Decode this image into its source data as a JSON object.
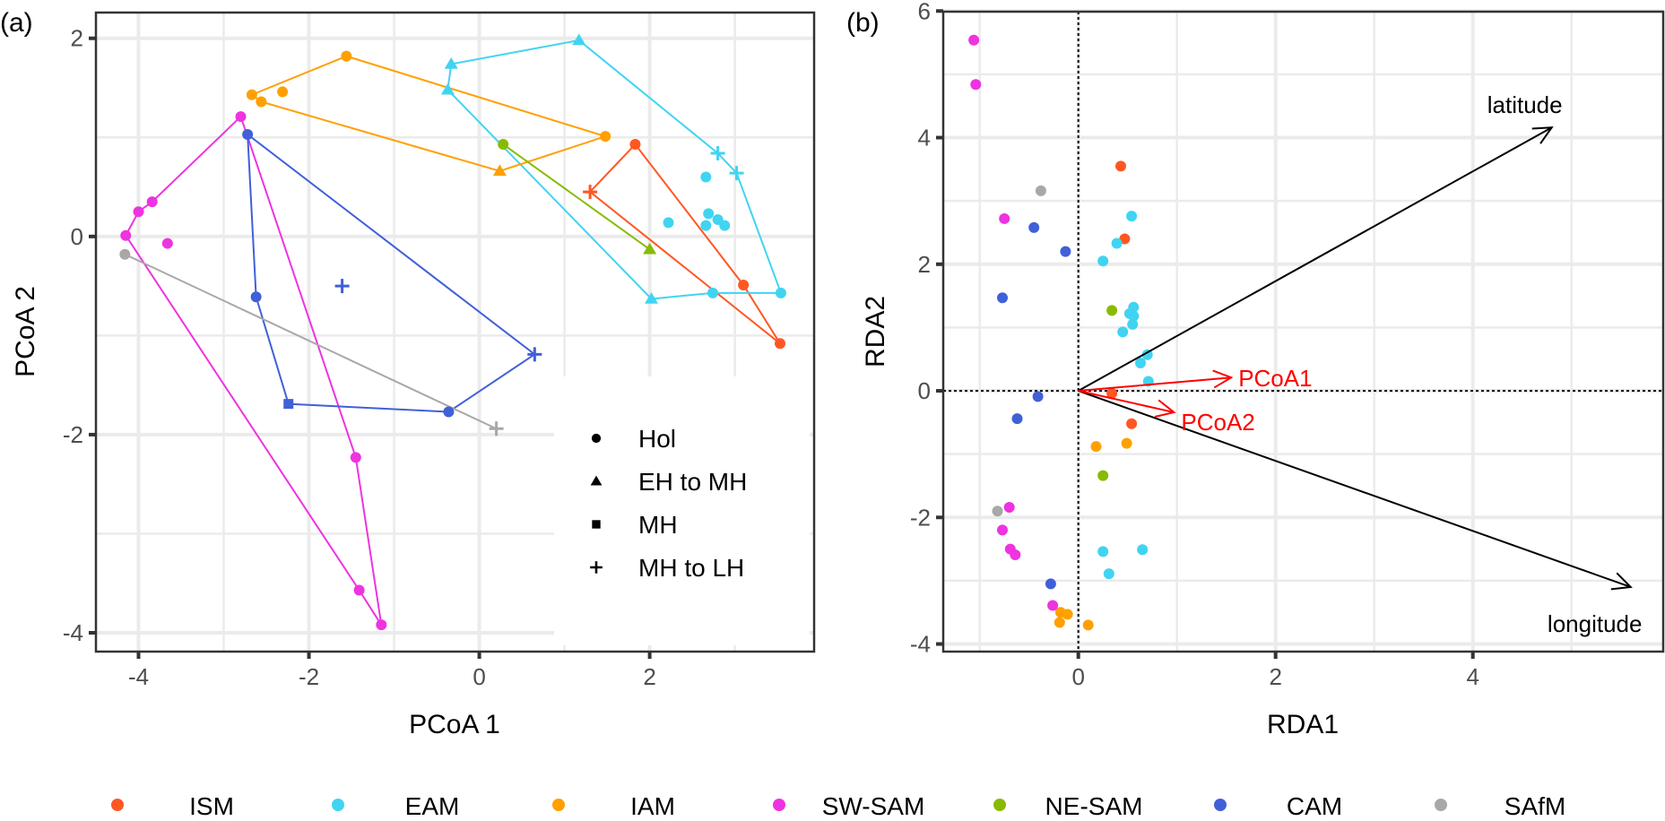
{
  "figure": {
    "legend_groups": [
      {
        "name": "ISM",
        "color": "#FF5722"
      },
      {
        "name": "EAM",
        "color": "#40D4F2"
      },
      {
        "name": "IAM",
        "color": "#FFA000"
      },
      {
        "name": "SW-SAM",
        "color": "#EE33E0"
      },
      {
        "name": "NE-SAM",
        "color": "#88BB00"
      },
      {
        "name": "CAM",
        "color": "#4060D8"
      },
      {
        "name": "SAfM",
        "color": "#A8A8A8"
      }
    ],
    "shape_legend": [
      {
        "shape": "circle",
        "label": "Hol"
      },
      {
        "shape": "triangle",
        "label": "EH to MH"
      },
      {
        "shape": "square",
        "label": "MH"
      },
      {
        "shape": "plus",
        "label": "MH to LH"
      }
    ]
  },
  "chart_data": [
    {
      "panel": "(a)",
      "type": "scatter",
      "title": "",
      "xlabel": "PCoA 1",
      "ylabel": "PCoA 2",
      "xlim": [
        -4.5,
        3.93
      ],
      "ylim": [
        -4.19,
        2.26
      ],
      "xticks": [
        -4,
        -2,
        0,
        2
      ],
      "yticks": [
        -4,
        -2,
        0,
        2
      ],
      "grid": true,
      "legend_placement": "bottom-right-inside",
      "series": [
        {
          "name": "ISM",
          "points": [
            {
              "x": 1.83,
              "y": 0.93,
              "shape": "circle"
            },
            {
              "x": 1.3,
              "y": 0.45,
              "shape": "plus"
            },
            {
              "x": 3.53,
              "y": -1.08,
              "shape": "circle"
            },
            {
              "x": 3.1,
              "y": -0.49,
              "shape": "circle"
            }
          ],
          "hull": [
            0,
            1,
            2,
            3
          ]
        },
        {
          "name": "EAM",
          "points": [
            {
              "x": 1.17,
              "y": 1.98,
              "shape": "triangle"
            },
            {
              "x": -0.33,
              "y": 1.74,
              "shape": "triangle"
            },
            {
              "x": -0.37,
              "y": 1.48,
              "shape": "triangle"
            },
            {
              "x": 2.02,
              "y": -0.63,
              "shape": "triangle"
            },
            {
              "x": 2.74,
              "y": -0.57,
              "shape": "circle"
            },
            {
              "x": 3.54,
              "y": -0.57,
              "shape": "circle"
            },
            {
              "x": 3.02,
              "y": 0.64,
              "shape": "plus"
            },
            {
              "x": 2.8,
              "y": 0.84,
              "shape": "plus"
            },
            {
              "x": 2.66,
              "y": 0.6,
              "shape": "circle"
            },
            {
              "x": 2.22,
              "y": 0.14,
              "shape": "circle"
            },
            {
              "x": 2.69,
              "y": 0.23,
              "shape": "circle"
            },
            {
              "x": 2.8,
              "y": 0.17,
              "shape": "circle"
            },
            {
              "x": 2.88,
              "y": 0.11,
              "shape": "circle"
            },
            {
              "x": 2.66,
              "y": 0.11,
              "shape": "circle"
            }
          ],
          "hull": [
            0,
            1,
            2,
            3,
            4,
            5,
            6,
            7
          ]
        },
        {
          "name": "IAM",
          "points": [
            {
              "x": -1.56,
              "y": 1.82,
              "shape": "circle"
            },
            {
              "x": 1.48,
              "y": 1.01,
              "shape": "circle"
            },
            {
              "x": 0.24,
              "y": 0.66,
              "shape": "triangle"
            },
            {
              "x": -2.56,
              "y": 1.36,
              "shape": "circle"
            },
            {
              "x": -2.67,
              "y": 1.43,
              "shape": "circle"
            },
            {
              "x": -2.31,
              "y": 1.46,
              "shape": "circle"
            }
          ],
          "hull": [
            0,
            1,
            2,
            3,
            4
          ]
        },
        {
          "name": "SW-SAM",
          "points": [
            {
              "x": -2.8,
              "y": 1.21,
              "shape": "circle"
            },
            {
              "x": -3.84,
              "y": 0.35,
              "shape": "circle"
            },
            {
              "x": -4.0,
              "y": 0.25,
              "shape": "circle"
            },
            {
              "x": -4.15,
              "y": 0.01,
              "shape": "circle"
            },
            {
              "x": -1.41,
              "y": -3.57,
              "shape": "circle"
            },
            {
              "x": -1.15,
              "y": -3.92,
              "shape": "circle"
            },
            {
              "x": -1.45,
              "y": -2.23,
              "shape": "circle"
            },
            {
              "x": -3.66,
              "y": -0.07,
              "shape": "circle"
            }
          ],
          "hull": [
            0,
            1,
            2,
            3,
            4,
            5,
            6
          ]
        },
        {
          "name": "NE-SAM",
          "points": [
            {
              "x": 0.28,
              "y": 0.93,
              "shape": "circle"
            },
            {
              "x": 2.0,
              "y": -0.13,
              "shape": "triangle"
            }
          ],
          "hull": [
            0,
            1
          ]
        },
        {
          "name": "CAM",
          "points": [
            {
              "x": -2.72,
              "y": 1.03,
              "shape": "circle"
            },
            {
              "x": -2.62,
              "y": -0.61,
              "shape": "circle"
            },
            {
              "x": -2.24,
              "y": -1.69,
              "shape": "square"
            },
            {
              "x": -0.36,
              "y": -1.77,
              "shape": "circle"
            },
            {
              "x": 0.65,
              "y": -1.19,
              "shape": "plus"
            },
            {
              "x": -1.61,
              "y": -0.5,
              "shape": "plus"
            }
          ],
          "hull": [
            0,
            1,
            2,
            3,
            4
          ]
        },
        {
          "name": "SAfM",
          "points": [
            {
              "x": -4.16,
              "y": -0.18,
              "shape": "circle"
            },
            {
              "x": 0.2,
              "y": -1.94,
              "shape": "plus"
            }
          ],
          "hull": [
            0,
            1
          ]
        }
      ]
    },
    {
      "panel": "(b)",
      "type": "scatter",
      "title": "",
      "xlabel": "RDA1",
      "ylabel": "RDA2",
      "xlim": [
        -1.37,
        5.93
      ],
      "ylim": [
        -4.12,
        5.99
      ],
      "xticks": [
        0,
        2,
        4
      ],
      "yticks": [
        -4,
        -2,
        0,
        2,
        4,
        6
      ],
      "grid": true,
      "reference_lines": {
        "x": 0,
        "y": 0,
        "style": "dotted"
      },
      "arrows": [
        {
          "label": "latitude",
          "x": 4.8,
          "y": 4.16,
          "color": "#000000"
        },
        {
          "label": "longitude",
          "x": 5.6,
          "y": -3.1,
          "color": "#000000"
        },
        {
          "label": "PCoA1",
          "x": 1.55,
          "y": 0.21,
          "color": "#FF0000"
        },
        {
          "label": "PCoA2",
          "x": 0.97,
          "y": -0.34,
          "color": "#FF0000"
        }
      ],
      "series": [
        {
          "name": "ISM",
          "points": [
            [
              0.43,
              3.55
            ],
            [
              0.47,
              2.4
            ],
            [
              0.34,
              -0.04
            ],
            [
              0.54,
              -0.52
            ]
          ]
        },
        {
          "name": "EAM",
          "points": [
            [
              0.54,
              2.76
            ],
            [
              0.39,
              2.33
            ],
            [
              0.25,
              2.05
            ],
            [
              0.56,
              1.32
            ],
            [
              0.52,
              1.22
            ],
            [
              0.56,
              1.18
            ],
            [
              0.55,
              1.05
            ],
            [
              0.45,
              0.93
            ],
            [
              0.7,
              0.57
            ],
            [
              0.63,
              0.44
            ],
            [
              0.71,
              0.15
            ],
            [
              0.25,
              -2.54
            ],
            [
              0.65,
              -2.51
            ],
            [
              0.31,
              -2.89
            ]
          ]
        },
        {
          "name": "IAM",
          "points": [
            [
              0.49,
              -0.83
            ],
            [
              0.18,
              -0.88
            ],
            [
              -0.18,
              -3.5
            ],
            [
              -0.11,
              -3.53
            ],
            [
              -0.19,
              -3.66
            ],
            [
              0.1,
              -3.7
            ]
          ]
        },
        {
          "name": "SW-SAM",
          "points": [
            [
              -1.06,
              5.54
            ],
            [
              -1.04,
              4.84
            ],
            [
              -0.75,
              2.72
            ],
            [
              -0.7,
              -1.84
            ],
            [
              -0.77,
              -2.2
            ],
            [
              -0.69,
              -2.5
            ],
            [
              -0.64,
              -2.59
            ],
            [
              -0.26,
              -3.39
            ]
          ]
        },
        {
          "name": "NE-SAM",
          "points": [
            [
              0.34,
              1.27
            ],
            [
              0.25,
              -1.34
            ]
          ]
        },
        {
          "name": "CAM",
          "points": [
            [
              -0.45,
              2.58
            ],
            [
              -0.13,
              2.2
            ],
            [
              -0.77,
              1.47
            ],
            [
              -0.41,
              -0.09
            ],
            [
              -0.62,
              -0.44
            ],
            [
              -0.28,
              -3.05
            ]
          ]
        },
        {
          "name": "SAfM",
          "points": [
            [
              -0.38,
              3.16
            ],
            [
              -0.82,
              -1.9
            ]
          ]
        }
      ]
    }
  ]
}
